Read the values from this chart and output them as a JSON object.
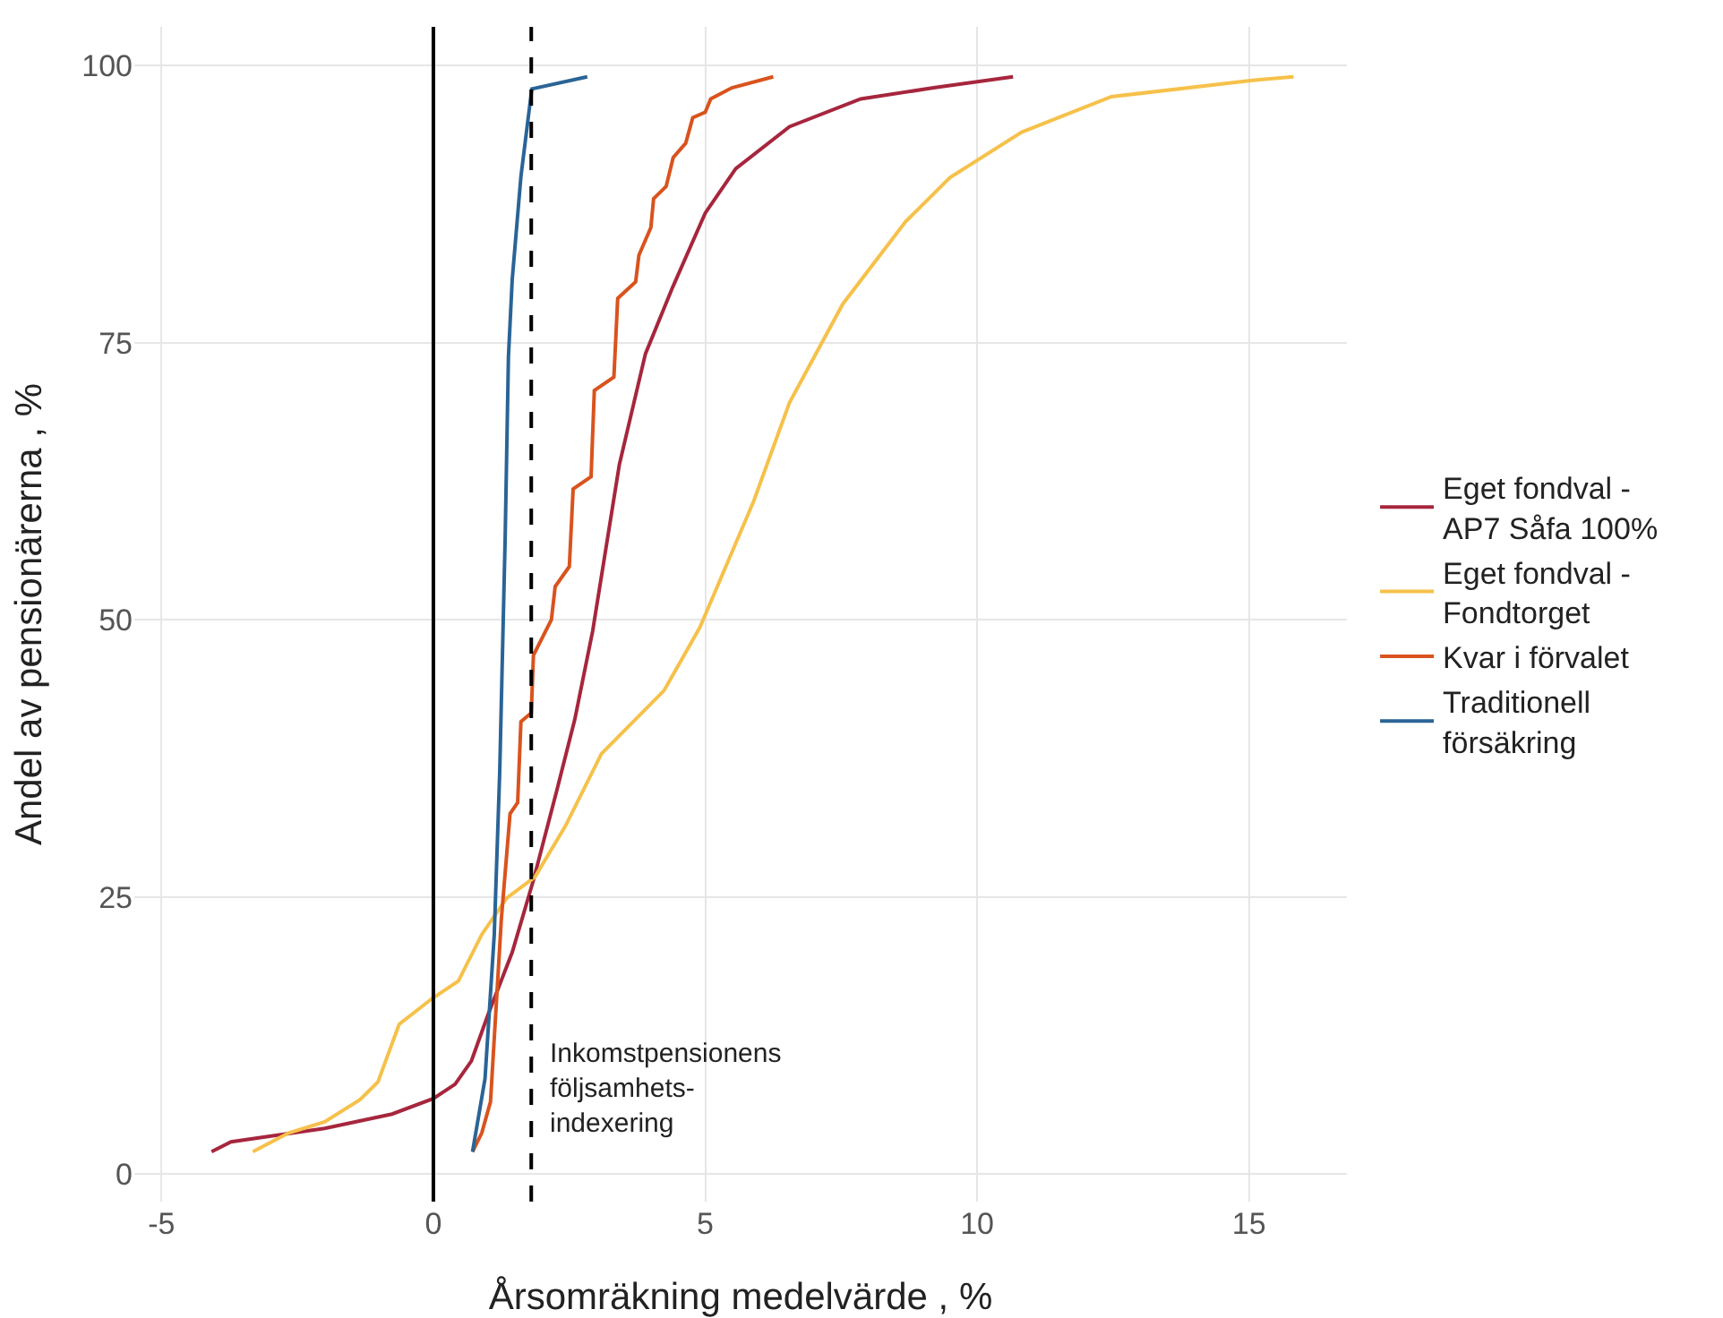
{
  "chart_data": {
    "type": "line",
    "xlabel": "Årsomräkning medelvärde , %",
    "ylabel": "Andel av pensionärerna , %",
    "xlim": [
      -5.5,
      16.8
    ],
    "xticks": [
      -5,
      0,
      5,
      10,
      15
    ],
    "ylim": [
      -2.5,
      103.5
    ],
    "yticks": [
      0,
      25,
      50,
      75,
      100
    ],
    "grid": true,
    "legend": "right",
    "line_style": "solid",
    "marker": "none",
    "series": [
      {
        "name": "Eget fondval -\nAP7 Såfa 100%",
        "color": "#a6263d",
        "x": [
          -4.08,
          -3.72,
          -2.0,
          -0.76,
          0,
          0.4,
          0.7,
          1.0,
          1.45,
          1.84,
          2.27,
          2.6,
          2.93,
          3.42,
          3.9,
          4.4,
          5.0,
          5.56,
          6.55,
          7.86,
          9.2,
          10.66
        ],
        "values": [
          2,
          2.9,
          4.1,
          5.4,
          6.8,
          8.1,
          10.2,
          14.3,
          20,
          26.5,
          34.6,
          41,
          49,
          64,
          74,
          80,
          86.7,
          90.7,
          94.5,
          97,
          98,
          99
        ]
      },
      {
        "name": "Eget fondval -\nFondtorget",
        "color": "#f6c14a",
        "x": [
          -3.32,
          -2.66,
          -2.0,
          -1.35,
          -1.02,
          -0.63,
          -0.03,
          0.46,
          0.89,
          1.35,
          1.87,
          2.43,
          3.09,
          4.24,
          4.9,
          5.89,
          6.55,
          7.53,
          8.68,
          9.5,
          10.82,
          12.47,
          15.1,
          15.82
        ],
        "values": [
          2,
          3.7,
          4.7,
          6.7,
          8.3,
          13.5,
          15.8,
          17.4,
          21.6,
          24.9,
          26.8,
          31.4,
          37.9,
          43.6,
          49.3,
          60.7,
          69.6,
          78.5,
          85.9,
          89.9,
          94,
          97.2,
          98.7,
          99
        ]
      },
      {
        "name": "Kvar i förvalet",
        "color": "#d9531e",
        "x": [
          0.72,
          0.89,
          1.05,
          1.25,
          1.41,
          1.55,
          1.61,
          1.8,
          1.84,
          2.17,
          2.24,
          2.5,
          2.57,
          2.9,
          2.96,
          3.32,
          3.39,
          3.72,
          3.78,
          4.0,
          4.05,
          4.28,
          4.41,
          4.64,
          4.77,
          5.0,
          5.1,
          5.49,
          6.25
        ],
        "values": [
          2,
          3.7,
          6.5,
          23,
          32.5,
          33.5,
          40.8,
          41.6,
          46.8,
          50,
          53,
          54.8,
          61.8,
          62.9,
          70.7,
          71.9,
          79,
          80.5,
          82.9,
          85.4,
          88,
          89.1,
          91.7,
          93,
          95.3,
          95.8,
          97,
          98,
          99
        ]
      },
      {
        "name": "Traditionell\nförsäkring",
        "color": "#2a6496",
        "x": [
          0.72,
          0.95,
          1.12,
          1.22,
          1.32,
          1.38,
          1.45,
          1.61,
          1.81,
          2.83
        ],
        "values": [
          2,
          8.6,
          21.6,
          36.3,
          57.4,
          73.7,
          80.7,
          90,
          97.9,
          99
        ]
      }
    ],
    "ref_lines": [
      {
        "axis": "x",
        "value": 0,
        "color": "#000000",
        "line_style": "solid"
      },
      {
        "axis": "x",
        "value": 1.8,
        "color": "#000000",
        "line_style": "dashed",
        "label": "Inkomstpensionens\nföljsamhets-\nindexering"
      }
    ]
  }
}
